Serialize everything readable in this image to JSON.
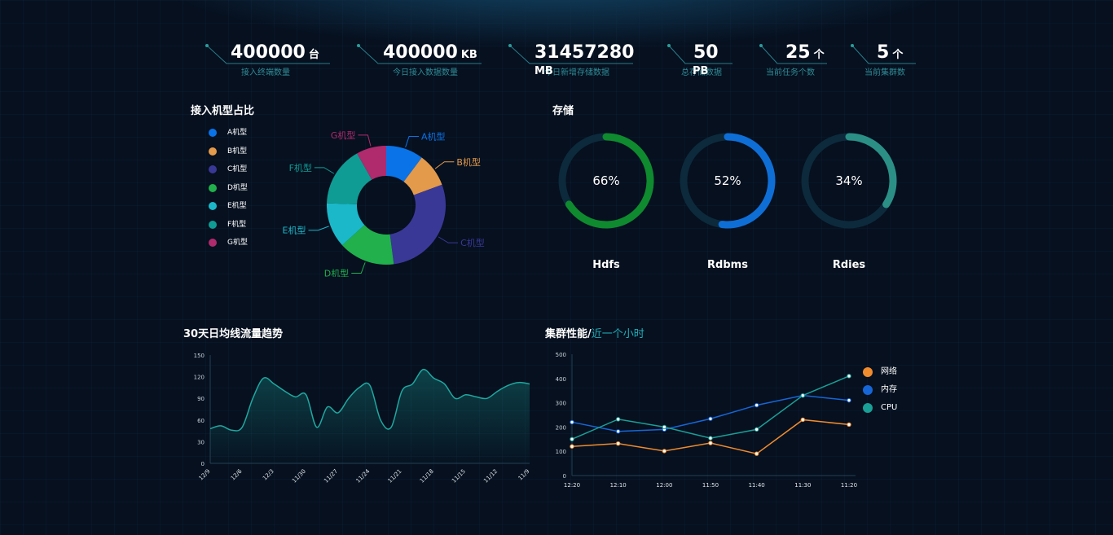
{
  "stats": [
    {
      "value": "400000",
      "unit": "台",
      "label": "接入终端数量"
    },
    {
      "value": "400000",
      "unit": "KB",
      "label": "今日接入数据数量"
    },
    {
      "value": "31457280",
      "unit": "MB",
      "label": "今日新增存储数据"
    },
    {
      "value": "50",
      "unit": "PB",
      "label": "总存储数据"
    },
    {
      "value": "25",
      "unit": "个",
      "label": "当前任务个数"
    },
    {
      "value": "5",
      "unit": "个",
      "label": "当前集群数"
    }
  ],
  "pie_panel": {
    "title": "接入机型占比"
  },
  "storage_panel": {
    "title": "存储"
  },
  "trend_panel": {
    "title": "30天日均线流量趋势"
  },
  "perf_panel": {
    "title": "集群性能/",
    "title_accent": "近一个小时"
  },
  "colors": {
    "A": "#0a73e8",
    "B": "#e39a4b",
    "C": "#3a3897",
    "D": "#21b04c",
    "E": "#1bb8c9",
    "F": "#0f9c94",
    "G": "#b02a6e",
    "gauge_hdfs": "#0f8a2e",
    "gauge_rdbms": "#0f6ed6",
    "gauge_rdies": "#2b8f86",
    "net": "#f08c2e",
    "mem": "#1666d8",
    "cpu": "#1a9f96"
  },
  "chart_data": [
    {
      "type": "pie",
      "title": "接入机型占比",
      "labels": [
        "A机型",
        "B机型",
        "C机型",
        "D机型",
        "E机型",
        "F机型",
        "G机型"
      ],
      "values": [
        10,
        9,
        28,
        15,
        12,
        16,
        8
      ],
      "legend": "left",
      "donut": true
    },
    {
      "type": "pie",
      "title": "存储",
      "gauges": [
        {
          "name": "Hdfs",
          "value": 66,
          "text": "66%"
        },
        {
          "name": "Rdbms",
          "value": 52,
          "text": "52%"
        },
        {
          "name": "Rdies",
          "value": 34,
          "text": "34%"
        }
      ]
    },
    {
      "type": "area",
      "title": "30天日均线流量趋势",
      "x_ticks": [
        "12/9",
        "12/6",
        "12/3",
        "11/30",
        "11/27",
        "11/24",
        "11/21",
        "11/18",
        "11/15",
        "11/12",
        "11/9"
      ],
      "y_ticks": [
        "150",
        "120",
        "90",
        "60",
        "30",
        "0"
      ],
      "ylim": [
        0,
        150
      ],
      "values": [
        48,
        52,
        46,
        50,
        90,
        118,
        110,
        100,
        92,
        95,
        50,
        78,
        70,
        90,
        105,
        108,
        60,
        50,
        100,
        110,
        130,
        118,
        110,
        90,
        95,
        92,
        90,
        100,
        108,
        112,
        110
      ]
    },
    {
      "type": "line",
      "title": "集群性能/近一个小时",
      "categories": [
        "12:20",
        "12:10",
        "12:00",
        "11:50",
        "11:40",
        "11:30",
        "11:20"
      ],
      "y_ticks": [
        "500",
        "400",
        "300",
        "200",
        "100",
        "0"
      ],
      "ylim": [
        0,
        500
      ],
      "legend": "right",
      "series": [
        {
          "name": "网络",
          "values": [
            120,
            132,
            101,
            134,
            90,
            230,
            210
          ]
        },
        {
          "name": "内存",
          "values": [
            220,
            182,
            190,
            234,
            290,
            330,
            310
          ]
        },
        {
          "name": "CPU",
          "values": [
            150,
            232,
            200,
            154,
            190,
            330,
            410
          ]
        }
      ]
    }
  ]
}
